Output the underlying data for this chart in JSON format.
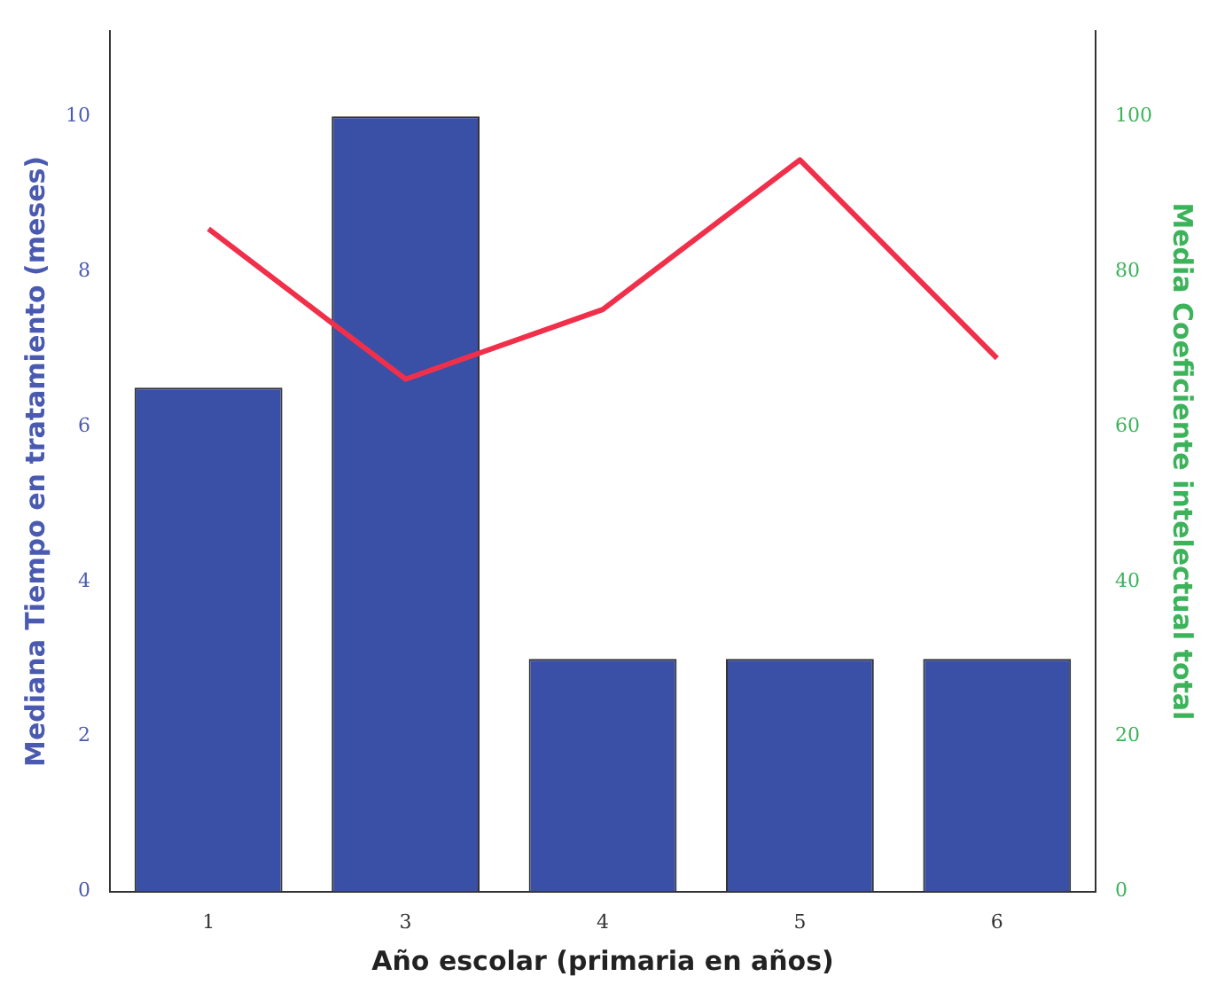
{
  "chart_data": {
    "type": "bar",
    "xlabel": "Año escolar (primaria en años)",
    "ylabel": "Mediana Tiempo en tratamiento (meses)",
    "y2label": "Media Coeficiente intelectual total",
    "categories": [
      "1",
      "3",
      "4",
      "5",
      "6"
    ],
    "series": [
      {
        "color": "#3a50a6",
        "values": [
          6.5,
          10,
          3,
          3,
          3
        ]
      },
      {
        "type": "line",
        "axis": "y2",
        "color": "#f0304a",
        "values": [
          85.5,
          66.1,
          75.1,
          94.4,
          68.8
        ]
      }
    ],
    "ylim": [
      0,
      11.1
    ],
    "yticks": [
      0,
      2,
      4,
      6,
      8,
      10
    ],
    "y2lim": [
      0,
      111
    ],
    "y2ticks": [
      0,
      20,
      40,
      60,
      80,
      100
    ],
    "grid": false,
    "legend": false,
    "marker": "none"
  }
}
